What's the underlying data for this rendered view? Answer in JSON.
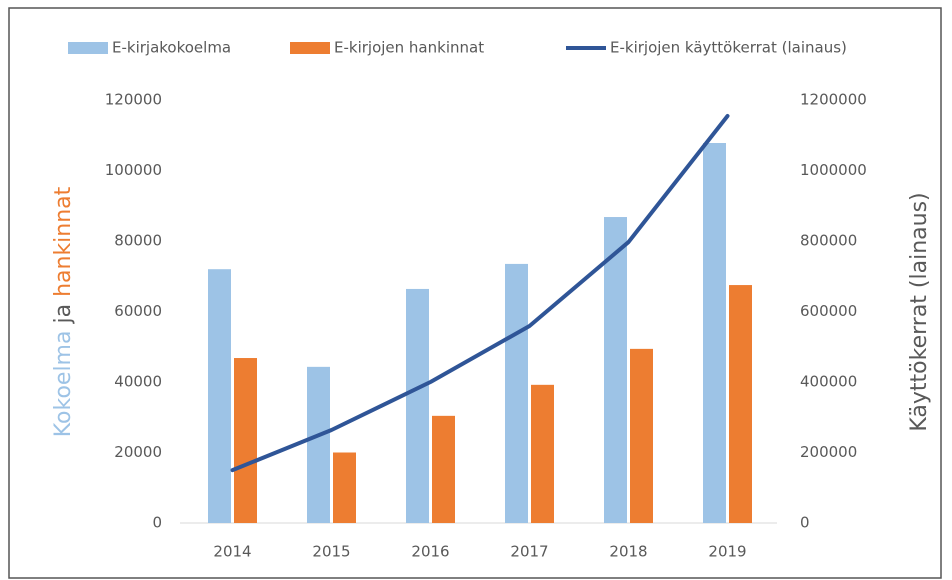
{
  "chart_data": {
    "type": "bar_line",
    "categories": [
      "2014",
      "2015",
      "2016",
      "2017",
      "2018",
      "2019"
    ],
    "series": [
      {
        "name": "E-kirjakokoelma",
        "color": "#9dc3e6",
        "type": "bar",
        "values": [
          72000,
          44300,
          66400,
          73500,
          86800,
          107800
        ]
      },
      {
        "name": "E-kirjojen hankinnat",
        "color": "#ed7d31",
        "type": "bar",
        "values": [
          46800,
          20000,
          30400,
          39200,
          49400,
          67500
        ]
      },
      {
        "name": "E-kirjojen käyttökerrat (lainaus)",
        "color": "#2f5597",
        "type": "line",
        "axis": "y2",
        "values": [
          150000,
          263800,
          400000,
          558900,
          797000,
          1154600
        ]
      }
    ],
    "y_label": [
      {
        "text": "Kokoelma",
        "color": "#9dc3e6"
      },
      {
        "text": " ja ",
        "color": "#595959"
      },
      {
        "text": "hankinnat",
        "color": "#ed7d31"
      }
    ],
    "y2_label": {
      "text": "Käyttökerrat (lainaus)",
      "color": "#2f5597"
    },
    "ylim": [
      0,
      120000
    ],
    "yticks": [
      0,
      20000,
      40000,
      60000,
      80000,
      100000,
      120000
    ],
    "y2lim": [
      0,
      1200000
    ],
    "y2ticks": [
      0,
      200000,
      400000,
      600000,
      800000,
      1000000,
      1200000
    ],
    "grid": false,
    "legend": "top"
  }
}
